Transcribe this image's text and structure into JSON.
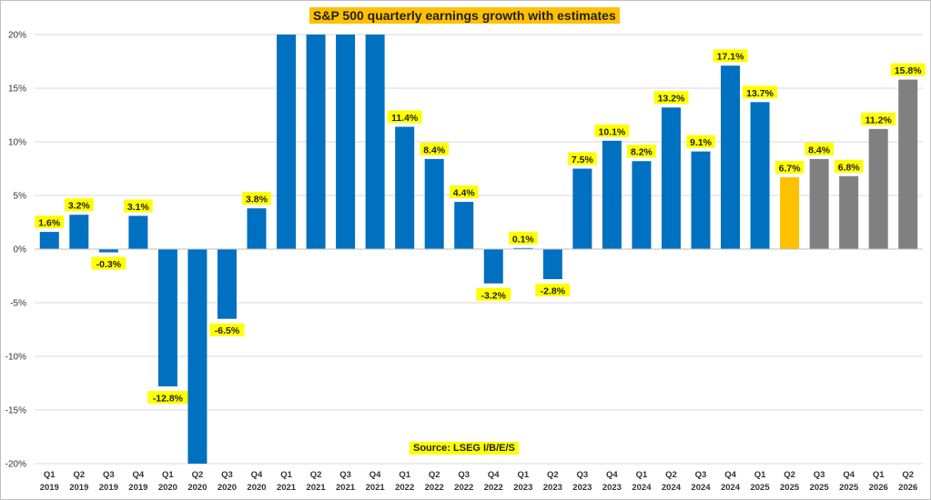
{
  "chart_data": {
    "type": "bar",
    "title": "S&P 500 quarterly earnings growth with estimates",
    "source": "Source: LSEG I/B/E/S",
    "xlabel": "",
    "ylabel": "",
    "ylim": [
      -20,
      20
    ],
    "yticks": [
      "-20%",
      "-15%",
      "-10%",
      "-5%",
      "0%",
      "5%",
      "10%",
      "15%",
      "20%"
    ],
    "grid": true,
    "categories": [
      [
        "Q1",
        "2019"
      ],
      [
        "Q2",
        "2019"
      ],
      [
        "Q3",
        "2019"
      ],
      [
        "Q4",
        "2019"
      ],
      [
        "Q1",
        "2020"
      ],
      [
        "Q2",
        "2020"
      ],
      [
        "Q3",
        "2020"
      ],
      [
        "Q4",
        "2020"
      ],
      [
        "Q1",
        "2021"
      ],
      [
        "Q2",
        "2021"
      ],
      [
        "Q3",
        "2021"
      ],
      [
        "Q4",
        "2021"
      ],
      [
        "Q1",
        "2022"
      ],
      [
        "Q2",
        "2022"
      ],
      [
        "Q3",
        "2022"
      ],
      [
        "Q4",
        "2022"
      ],
      [
        "Q1",
        "2023"
      ],
      [
        "Q2",
        "2023"
      ],
      [
        "Q3",
        "2023"
      ],
      [
        "Q4",
        "2023"
      ],
      [
        "Q1",
        "2024"
      ],
      [
        "Q2",
        "2024"
      ],
      [
        "Q3",
        "2024"
      ],
      [
        "Q4",
        "2024"
      ],
      [
        "Q1",
        "2025"
      ],
      [
        "Q2",
        "2025"
      ],
      [
        "Q3",
        "2025"
      ],
      [
        "Q4",
        "2025"
      ],
      [
        "Q1",
        "2026"
      ],
      [
        "Q2",
        "2026"
      ]
    ],
    "values": [
      1.6,
      3.2,
      -0.3,
      3.1,
      -12.8,
      -20,
      -6.5,
      3.8,
      20,
      20,
      20,
      20,
      11.4,
      8.4,
      4.4,
      -3.2,
      0.1,
      -2.8,
      7.5,
      10.1,
      8.2,
      13.2,
      9.1,
      17.1,
      13.7,
      6.7,
      8.4,
      6.8,
      11.2,
      15.8
    ],
    "labels": [
      "1.6%",
      "3.2%",
      "-0.3%",
      "3.1%",
      "-12.8%",
      "",
      "-6.5%",
      "3.8%",
      "",
      "",
      "",
      "",
      "11.4%",
      "8.4%",
      "4.4%",
      "-3.2%",
      "0.1%",
      "-2.8%",
      "7.5%",
      "10.1%",
      "8.2%",
      "13.2%",
      "9.1%",
      "17.1%",
      "13.7%",
      "6.7%",
      "8.4%",
      "6.8%",
      "11.2%",
      "15.8%"
    ],
    "series_kind": [
      "actual",
      "actual",
      "actual",
      "actual",
      "actual",
      "actual",
      "actual",
      "actual",
      "actual",
      "actual",
      "actual",
      "actual",
      "actual",
      "actual",
      "actual",
      "actual",
      "actual",
      "actual",
      "actual",
      "actual",
      "actual",
      "actual",
      "actual",
      "actual",
      "actual",
      "current",
      "estimate",
      "estimate",
      "estimate",
      "estimate"
    ],
    "colors": {
      "actual": "#0070c0",
      "current": "#ffc000",
      "estimate": "#808080",
      "label_bg": "#ffff00",
      "grid": "#d9d9d9"
    }
  }
}
